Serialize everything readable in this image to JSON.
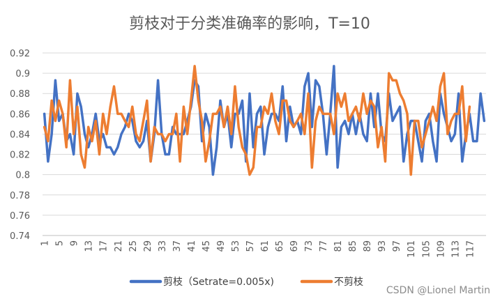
{
  "chart_data": {
    "type": "line",
    "title": "剪枝对于分类准确率的影响，T=10",
    "xlabel": "",
    "ylabel": "",
    "ylim": [
      0.74,
      0.92
    ],
    "yticks": [
      "0.74",
      "0.76",
      "0.78",
      "0.8",
      "0.82",
      "0.84",
      "0.86",
      "0.88",
      "0.9",
      "0.92"
    ],
    "x_tick_labels": [
      "1",
      "5",
      "9",
      "13",
      "17",
      "21",
      "25",
      "29",
      "33",
      "37",
      "41",
      "45",
      "49",
      "53",
      "57",
      "61",
      "65",
      "69",
      "73",
      "77",
      "81",
      "85",
      "89",
      "93",
      "97",
      "101",
      "105",
      "109",
      "113",
      "117"
    ],
    "grid": true,
    "legend_position": "bottom",
    "series": [
      {
        "name": "剪枝（Setrate=0.005x)",
        "color": "#4472C4",
        "values": [
          0.86,
          0.813,
          0.84,
          0.893,
          0.853,
          0.86,
          0.833,
          0.84,
          0.82,
          0.88,
          0.867,
          0.84,
          0.827,
          0.84,
          0.86,
          0.833,
          0.84,
          0.827,
          0.827,
          0.82,
          0.827,
          0.84,
          0.847,
          0.86,
          0.853,
          0.833,
          0.827,
          0.833,
          0.853,
          0.813,
          0.84,
          0.893,
          0.84,
          0.82,
          0.82,
          0.847,
          0.84,
          0.84,
          0.84,
          0.853,
          0.867,
          0.893,
          0.887,
          0.833,
          0.86,
          0.847,
          0.8,
          0.827,
          0.873,
          0.847,
          0.86,
          0.827,
          0.86,
          0.86,
          0.873,
          0.813,
          0.88,
          0.827,
          0.86,
          0.867,
          0.82,
          0.847,
          0.86,
          0.86,
          0.853,
          0.887,
          0.833,
          0.867,
          0.847,
          0.853,
          0.84,
          0.887,
          0.9,
          0.847,
          0.893,
          0.887,
          0.86,
          0.82,
          0.86,
          0.907,
          0.807,
          0.847,
          0.853,
          0.84,
          0.86,
          0.84,
          0.86,
          0.84,
          0.833,
          0.88,
          0.847,
          0.88,
          0.84,
          0.833,
          0.88,
          0.853,
          0.86,
          0.867,
          0.813,
          0.84,
          0.853,
          0.853,
          0.833,
          0.813,
          0.853,
          0.86,
          0.833,
          0.813,
          0.88,
          0.86,
          0.847,
          0.833,
          0.84,
          0.88,
          0.813,
          0.84,
          0.86,
          0.833,
          0.833,
          0.88,
          0.853
        ]
      },
      {
        "name": "不剪枝",
        "color": "#ED7D31",
        "values": [
          0.847,
          0.833,
          0.873,
          0.853,
          0.873,
          0.86,
          0.827,
          0.893,
          0.84,
          0.867,
          0.82,
          0.807,
          0.847,
          0.833,
          0.853,
          0.82,
          0.86,
          0.84,
          0.867,
          0.887,
          0.86,
          0.86,
          0.853,
          0.847,
          0.867,
          0.84,
          0.833,
          0.853,
          0.873,
          0.813,
          0.847,
          0.84,
          0.84,
          0.833,
          0.84,
          0.84,
          0.86,
          0.813,
          0.867,
          0.84,
          0.873,
          0.907,
          0.873,
          0.853,
          0.813,
          0.833,
          0.86,
          0.86,
          0.867,
          0.847,
          0.867,
          0.84,
          0.887,
          0.847,
          0.827,
          0.82,
          0.8,
          0.807,
          0.847,
          0.847,
          0.867,
          0.86,
          0.88,
          0.853,
          0.84,
          0.873,
          0.873,
          0.853,
          0.847,
          0.853,
          0.86,
          0.84,
          0.88,
          0.807,
          0.853,
          0.867,
          0.86,
          0.86,
          0.86,
          0.84,
          0.88,
          0.867,
          0.88,
          0.853,
          0.86,
          0.867,
          0.853,
          0.88,
          0.86,
          0.873,
          0.867,
          0.827,
          0.847,
          0.813,
          0.9,
          0.893,
          0.893,
          0.88,
          0.873,
          0.86,
          0.8,
          0.853,
          0.853,
          0.827,
          0.84,
          0.853,
          0.867,
          0.853,
          0.887,
          0.9,
          0.84,
          0.853,
          0.86,
          0.86,
          0.887,
          0.833,
          0.867
        ]
      }
    ]
  },
  "watermark": "CSDN @Lionel Martin"
}
